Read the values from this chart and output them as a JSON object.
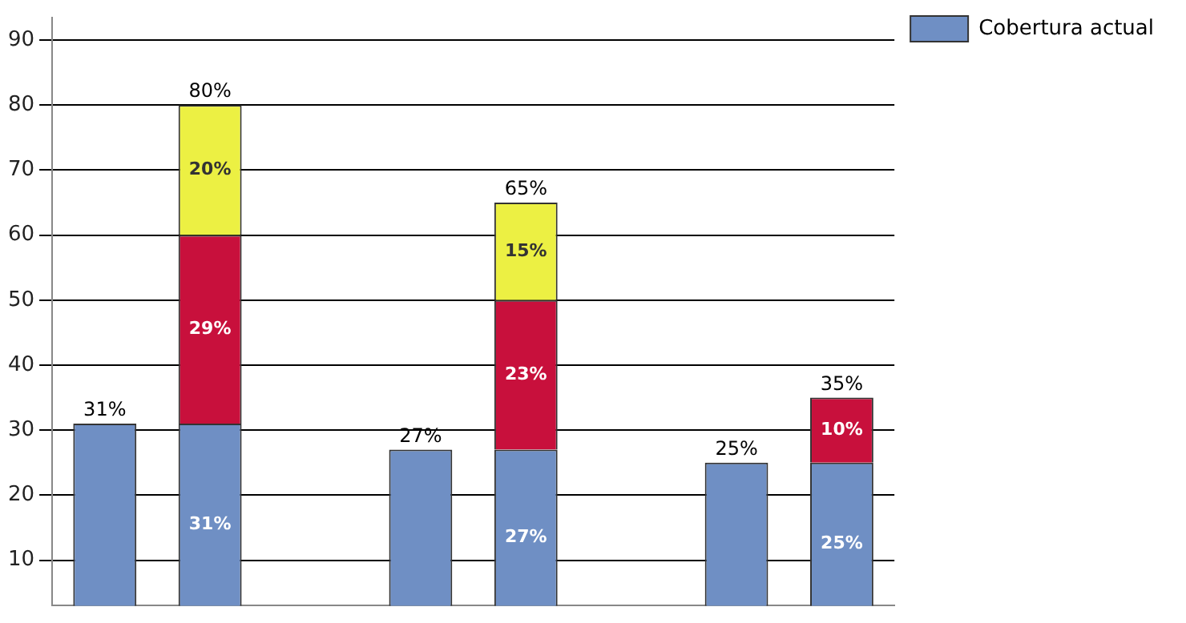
{
  "chart_data": {
    "type": "bar",
    "stacked": true,
    "categories": [
      null,
      null,
      null,
      null,
      null,
      null,
      null,
      null
    ],
    "series": [
      {
        "name": "Cobertura actual",
        "color": "#6f8fc4",
        "values": [
          31,
          31,
          null,
          27,
          27,
          null,
          25,
          25
        ],
        "value_labels": [
          null,
          "31%",
          null,
          null,
          "27%",
          null,
          null,
          "25%"
        ]
      },
      {
        "color": "#c8103c",
        "values": [
          null,
          29,
          null,
          null,
          23,
          null,
          null,
          10
        ],
        "value_labels": [
          null,
          "29%",
          null,
          null,
          "23%",
          null,
          null,
          "10%"
        ]
      },
      {
        "color": "#ecf043",
        "values": [
          null,
          20,
          null,
          null,
          15,
          null,
          null,
          null
        ],
        "value_labels": [
          null,
          "20%",
          null,
          null,
          "15%",
          null,
          null,
          null
        ]
      }
    ],
    "totals": [
      "31%",
      "80%",
      null,
      "27%",
      "65%",
      null,
      "25%",
      "35%"
    ],
    "ylim": [
      3,
      93.5
    ],
    "yticks": [
      10,
      20,
      30,
      40,
      50,
      60,
      70,
      80,
      90
    ],
    "grid": "y",
    "legend": "top right",
    "tick_labels": "y"
  }
}
